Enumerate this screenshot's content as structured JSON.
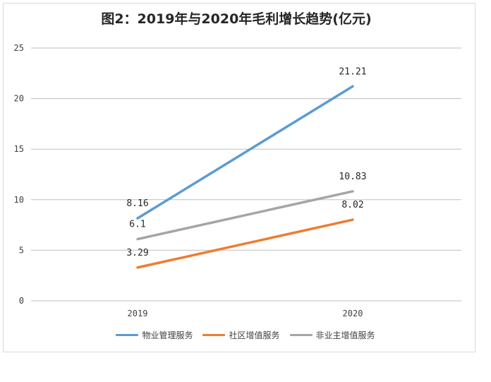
{
  "chart_data": {
    "type": "line",
    "title": "图2：2019年与2020年毛利增长趋势(亿元)",
    "categories": [
      "2019",
      "2020"
    ],
    "ylim": [
      0,
      25
    ],
    "yticks": [
      0,
      5,
      10,
      15,
      20,
      25
    ],
    "grid": true,
    "legend_position": "bottom",
    "series": [
      {
        "name": "物业管理服务",
        "values": [
          8.16,
          21.21
        ],
        "labels": [
          "8.16",
          "21.21"
        ],
        "color": "#5b9bd5"
      },
      {
        "name": "社区增值服务",
        "values": [
          3.29,
          8.02
        ],
        "labels": [
          "3.29",
          "8.02"
        ],
        "color": "#ed7d31"
      },
      {
        "name": "非业主增值服务",
        "values": [
          6.1,
          10.83
        ],
        "labels": [
          "6.1",
          "10.83"
        ],
        "color": "#a5a5a5"
      }
    ]
  }
}
